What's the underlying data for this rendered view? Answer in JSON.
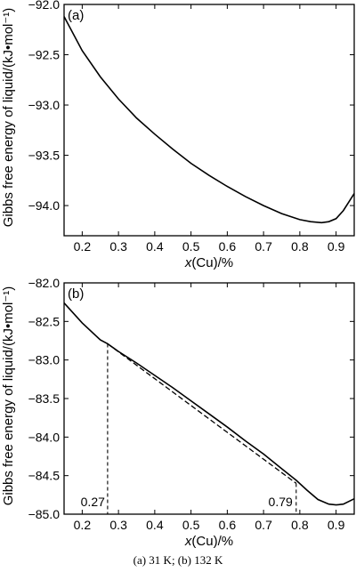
{
  "caption": "(a) 31 K; (b) 132 K",
  "chart_data": [
    {
      "type": "line",
      "panel_label": "(a)",
      "xlabel": "x(Cu)/%",
      "ylabel": "Gibbs free energy of liquid/(kJ•mol⁻¹)",
      "xlim": [
        0.15,
        0.95
      ],
      "ylim": [
        -94.3,
        -92.0
      ],
      "x_ticks": [
        "0.2",
        "0.3",
        "0.4",
        "0.5",
        "0.6",
        "0.7",
        "0.8",
        "0.9"
      ],
      "y_ticks": [
        "-92.0",
        "-92.5",
        "-93.0",
        "-93.5",
        "-94.0"
      ],
      "series": [
        {
          "x": [
            0.15,
            0.2,
            0.25,
            0.3,
            0.35,
            0.4,
            0.45,
            0.5,
            0.55,
            0.6,
            0.65,
            0.7,
            0.75,
            0.8,
            0.83,
            0.86,
            0.88,
            0.9,
            0.92,
            0.95
          ],
          "y": [
            -92.12,
            -92.46,
            -92.72,
            -92.94,
            -93.13,
            -93.29,
            -93.44,
            -93.58,
            -93.7,
            -93.81,
            -93.91,
            -94.0,
            -94.08,
            -94.14,
            -94.16,
            -94.17,
            -94.16,
            -94.13,
            -94.05,
            -93.88
          ]
        }
      ]
    },
    {
      "type": "line",
      "panel_label": "(b)",
      "xlabel": "x(Cu)/%",
      "ylabel": "Gibbs free energy of liquid/(kJ•mol⁻¹)",
      "xlim": [
        0.15,
        0.95
      ],
      "ylim": [
        -85.0,
        -82.0
      ],
      "x_ticks": [
        "0.2",
        "0.3",
        "0.4",
        "0.5",
        "0.6",
        "0.7",
        "0.8",
        "0.9"
      ],
      "y_ticks": [
        "-82.0",
        "-82.5",
        "-83.0",
        "-83.5",
        "-84.0",
        "-84.5",
        "-85.0"
      ],
      "series": [
        {
          "x": [
            0.15,
            0.2,
            0.25,
            0.27,
            0.3,
            0.35,
            0.4,
            0.45,
            0.5,
            0.55,
            0.6,
            0.65,
            0.7,
            0.75,
            0.79,
            0.82,
            0.85,
            0.88,
            0.9,
            0.92,
            0.95
          ],
          "y": [
            -82.26,
            -82.52,
            -82.74,
            -82.79,
            -82.89,
            -83.04,
            -83.2,
            -83.36,
            -83.53,
            -83.7,
            -83.87,
            -84.05,
            -84.22,
            -84.41,
            -84.56,
            -84.69,
            -84.81,
            -84.87,
            -84.88,
            -84.87,
            -84.8
          ]
        },
        {
          "style": "dashed",
          "x": [
            0.27,
            0.79
          ],
          "y": [
            -82.79,
            -84.6
          ]
        }
      ],
      "annotations": [
        {
          "text": "0.27",
          "x": 0.27,
          "y": -82.79
        },
        {
          "text": "0.79",
          "x": 0.79,
          "y": -84.6
        }
      ]
    }
  ]
}
